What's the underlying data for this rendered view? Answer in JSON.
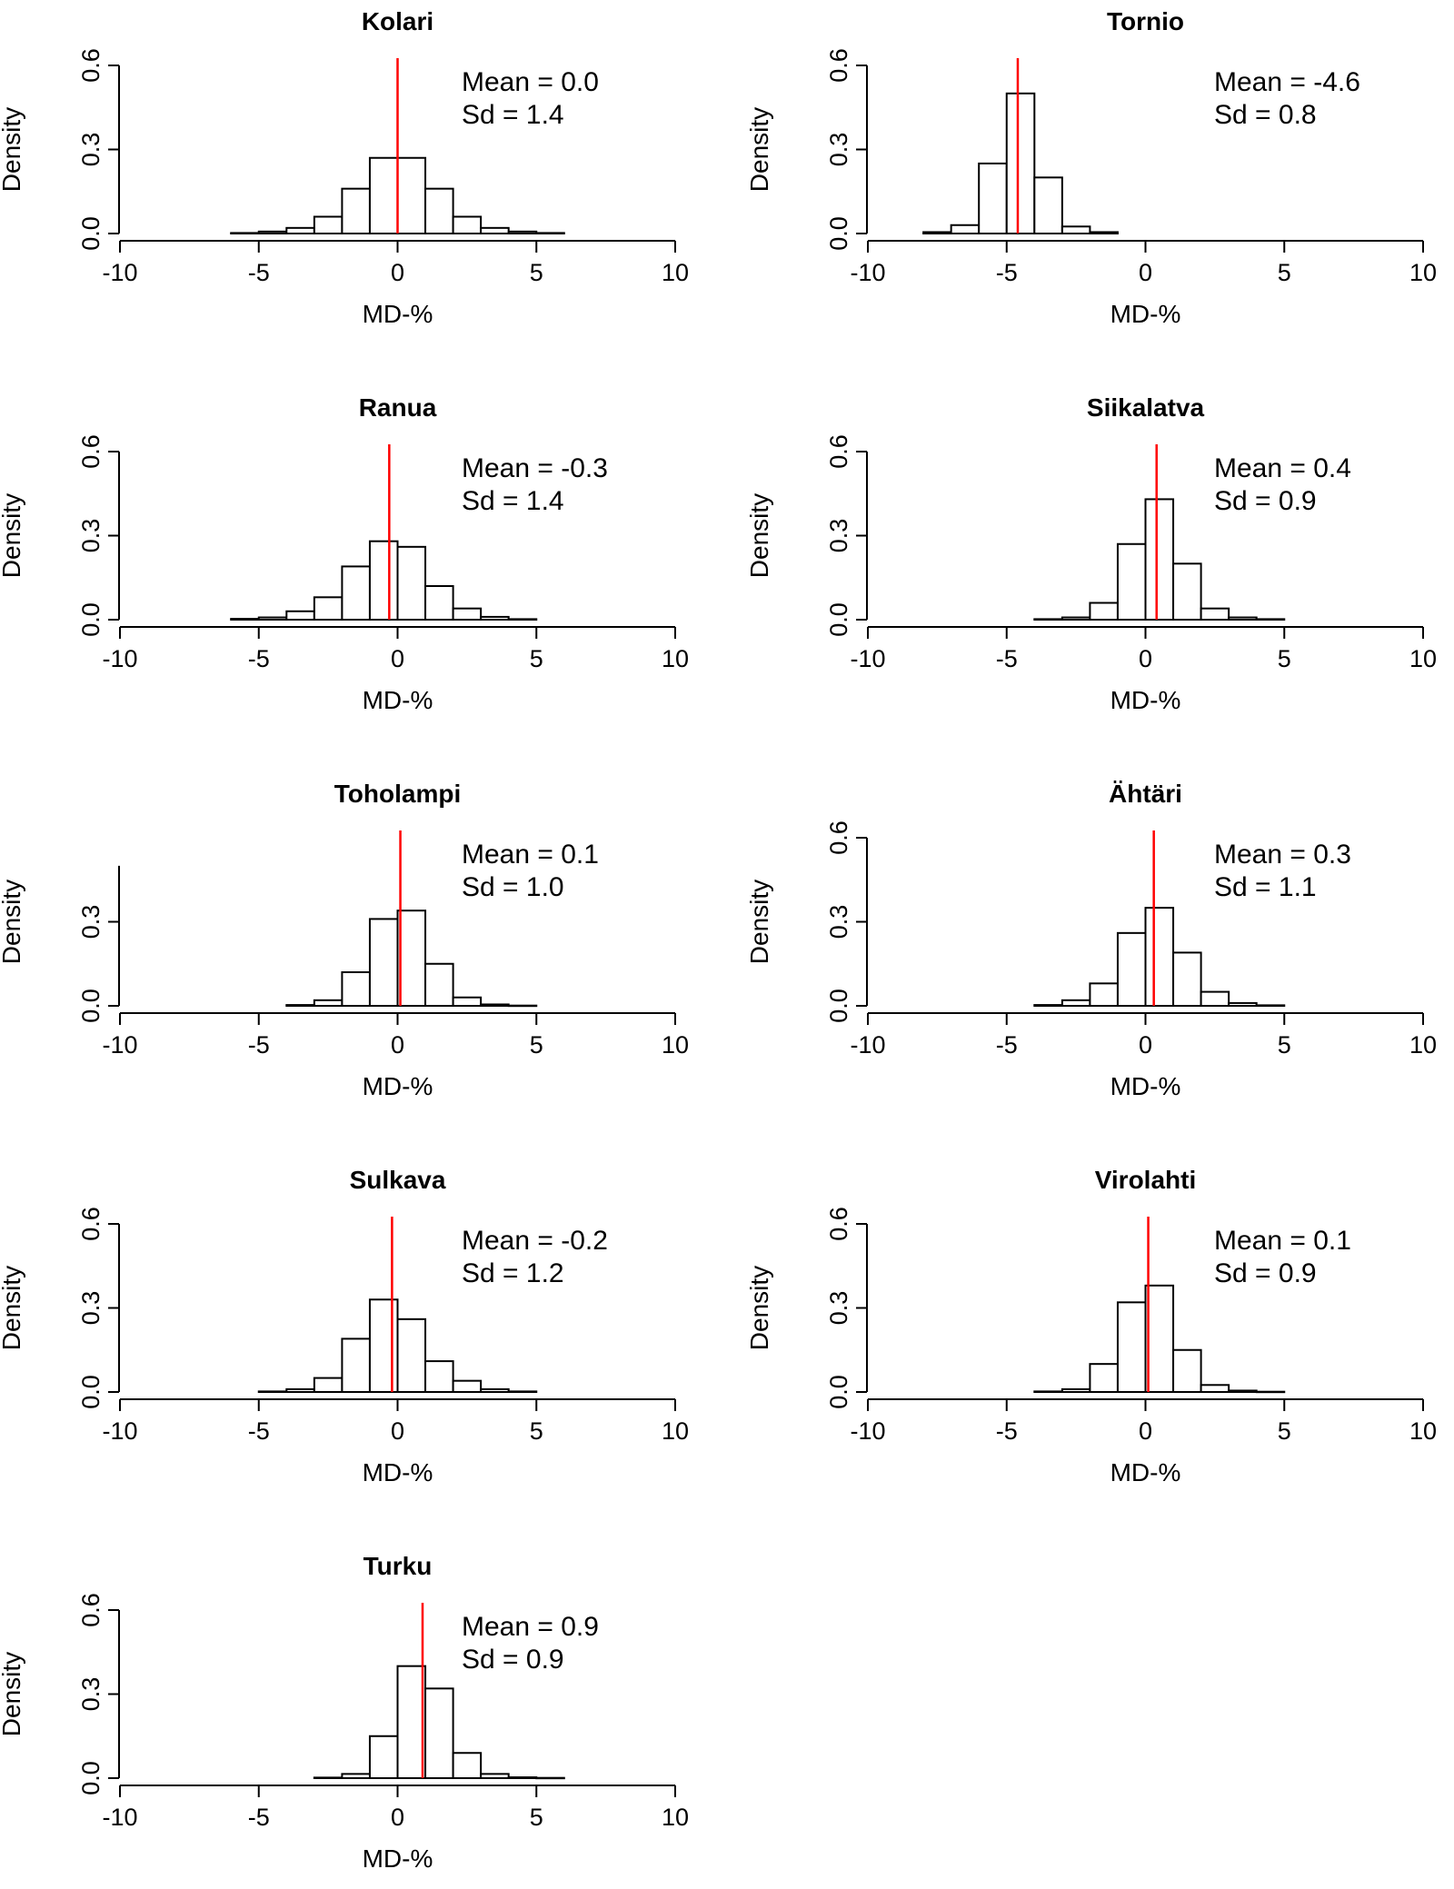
{
  "figure": {
    "background": "#ffffff",
    "bar_stroke": "#000000",
    "mean_line_color": "#ff0000"
  },
  "chart_data": [
    {
      "type": "bar",
      "title": "Kolari",
      "xlabel": "MD-%",
      "ylabel": "Density",
      "xlim": [
        -10,
        10
      ],
      "ylim": [
        0,
        0.6
      ],
      "xticks": [
        "-10",
        "-5",
        "0",
        "5",
        "10"
      ],
      "yticks": [
        "0.0",
        "0.3",
        "0.6"
      ],
      "bin_width": 1,
      "bins_left": [
        -6,
        -5,
        -4,
        -3,
        -2,
        -1,
        0,
        1,
        2,
        3,
        4,
        5
      ],
      "density": [
        0.002,
        0.007,
        0.02,
        0.06,
        0.16,
        0.27,
        0.27,
        0.16,
        0.06,
        0.02,
        0.007,
        0.002
      ],
      "mean_line": 0.0,
      "annotations": [
        "Mean = 0.0",
        "Sd = 1.4"
      ]
    },
    {
      "type": "bar",
      "title": "Tornio",
      "xlabel": "MD-%",
      "ylabel": "Density",
      "xlim": [
        -10,
        10
      ],
      "ylim": [
        0,
        0.6
      ],
      "xticks": [
        "-10",
        "-5",
        "0",
        "5",
        "10"
      ],
      "yticks": [
        "0.0",
        "0.3",
        "0.6"
      ],
      "bin_width": 1,
      "bins_left": [
        -8,
        -7,
        -6,
        -5,
        -4,
        -3,
        -2
      ],
      "density": [
        0.005,
        0.03,
        0.25,
        0.5,
        0.2,
        0.025,
        0.005
      ],
      "mean_line": -4.6,
      "annotations": [
        "Mean = -4.6",
        "Sd = 0.8"
      ]
    },
    {
      "type": "bar",
      "title": "Ranua",
      "xlabel": "MD-%",
      "ylabel": "Density",
      "xlim": [
        -10,
        10
      ],
      "ylim": [
        0,
        0.6
      ],
      "xticks": [
        "-10",
        "-5",
        "0",
        "5",
        "10"
      ],
      "yticks": [
        "0.0",
        "0.3",
        "0.6"
      ],
      "bin_width": 1,
      "bins_left": [
        -6,
        -5,
        -4,
        -3,
        -2,
        -1,
        0,
        1,
        2,
        3,
        4
      ],
      "density": [
        0.003,
        0.008,
        0.03,
        0.08,
        0.19,
        0.28,
        0.26,
        0.12,
        0.04,
        0.01,
        0.002
      ],
      "mean_line": -0.3,
      "annotations": [
        "Mean = -0.3",
        "Sd = 1.4"
      ]
    },
    {
      "type": "bar",
      "title": "Siikalatva",
      "xlabel": "MD-%",
      "ylabel": "Density",
      "xlim": [
        -10,
        10
      ],
      "ylim": [
        0,
        0.6
      ],
      "xticks": [
        "-10",
        "-5",
        "0",
        "5",
        "10"
      ],
      "yticks": [
        "0.0",
        "0.3",
        "0.6"
      ],
      "bin_width": 1,
      "bins_left": [
        -4,
        -3,
        -2,
        -1,
        0,
        1,
        2,
        3,
        4
      ],
      "density": [
        0.002,
        0.008,
        0.06,
        0.27,
        0.43,
        0.2,
        0.04,
        0.008,
        0.002
      ],
      "mean_line": 0.4,
      "annotations": [
        "Mean = 0.4",
        "Sd = 0.9"
      ]
    },
    {
      "type": "bar",
      "title": "Toholampi",
      "xlabel": "MD-%",
      "ylabel": "Density",
      "xlim": [
        -10,
        10
      ],
      "ylim": [
        0,
        0.5
      ],
      "xticks": [
        "-10",
        "-5",
        "0",
        "5",
        "10"
      ],
      "yticks": [
        "0.0",
        "0.3"
      ],
      "bin_width": 1,
      "bins_left": [
        -4,
        -3,
        -2,
        -1,
        0,
        1,
        2,
        3,
        4
      ],
      "density": [
        0.003,
        0.02,
        0.12,
        0.31,
        0.34,
        0.15,
        0.03,
        0.005,
        0.001
      ],
      "mean_line": 0.1,
      "annotations": [
        "Mean = 0.1",
        "Sd = 1.0"
      ]
    },
    {
      "type": "bar",
      "title": "Ähtäri",
      "xlabel": "MD-%",
      "ylabel": "Density",
      "xlim": [
        -10,
        10
      ],
      "ylim": [
        0,
        0.6
      ],
      "xticks": [
        "-10",
        "-5",
        "0",
        "5",
        "10"
      ],
      "yticks": [
        "0.0",
        "0.3",
        "0.6"
      ],
      "bin_width": 1,
      "bins_left": [
        -4,
        -3,
        -2,
        -1,
        0,
        1,
        2,
        3,
        4
      ],
      "density": [
        0.003,
        0.02,
        0.08,
        0.26,
        0.35,
        0.19,
        0.05,
        0.01,
        0.002
      ],
      "mean_line": 0.3,
      "annotations": [
        "Mean = 0.3",
        "Sd = 1.1"
      ]
    },
    {
      "type": "bar",
      "title": "Sulkava",
      "xlabel": "MD-%",
      "ylabel": "Density",
      "xlim": [
        -10,
        10
      ],
      "ylim": [
        0,
        0.6
      ],
      "xticks": [
        "-10",
        "-5",
        "0",
        "5",
        "10"
      ],
      "yticks": [
        "0.0",
        "0.3",
        "0.6"
      ],
      "bin_width": 1,
      "bins_left": [
        -5,
        -4,
        -3,
        -2,
        -1,
        0,
        1,
        2,
        3,
        4
      ],
      "density": [
        0.002,
        0.01,
        0.05,
        0.19,
        0.33,
        0.26,
        0.11,
        0.04,
        0.01,
        0.002
      ],
      "mean_line": -0.2,
      "annotations": [
        "Mean = -0.2",
        "Sd = 1.2"
      ]
    },
    {
      "type": "bar",
      "title": "Virolahti",
      "xlabel": "MD-%",
      "ylabel": "Density",
      "xlim": [
        -10,
        10
      ],
      "ylim": [
        0,
        0.6
      ],
      "xticks": [
        "-10",
        "-5",
        "0",
        "5",
        "10"
      ],
      "yticks": [
        "0.0",
        "0.3",
        "0.6"
      ],
      "bin_width": 1,
      "bins_left": [
        -4,
        -3,
        -2,
        -1,
        0,
        1,
        2,
        3,
        4
      ],
      "density": [
        0.002,
        0.01,
        0.1,
        0.32,
        0.38,
        0.15,
        0.025,
        0.005,
        0.001
      ],
      "mean_line": 0.1,
      "annotations": [
        "Mean = 0.1",
        "Sd = 0.9"
      ]
    },
    {
      "type": "bar",
      "title": "Turku",
      "xlabel": "MD-%",
      "ylabel": "Density",
      "xlim": [
        -10,
        10
      ],
      "ylim": [
        0,
        0.6
      ],
      "xticks": [
        "-10",
        "-5",
        "0",
        "5",
        "10"
      ],
      "yticks": [
        "0.0",
        "0.3",
        "0.6"
      ],
      "bin_width": 1,
      "bins_left": [
        -3,
        -2,
        -1,
        0,
        1,
        2,
        3,
        4,
        5
      ],
      "density": [
        0.002,
        0.015,
        0.15,
        0.4,
        0.32,
        0.09,
        0.015,
        0.003,
        0.001
      ],
      "mean_line": 0.9,
      "annotations": [
        "Mean = 0.9",
        "Sd = 0.9"
      ]
    }
  ]
}
